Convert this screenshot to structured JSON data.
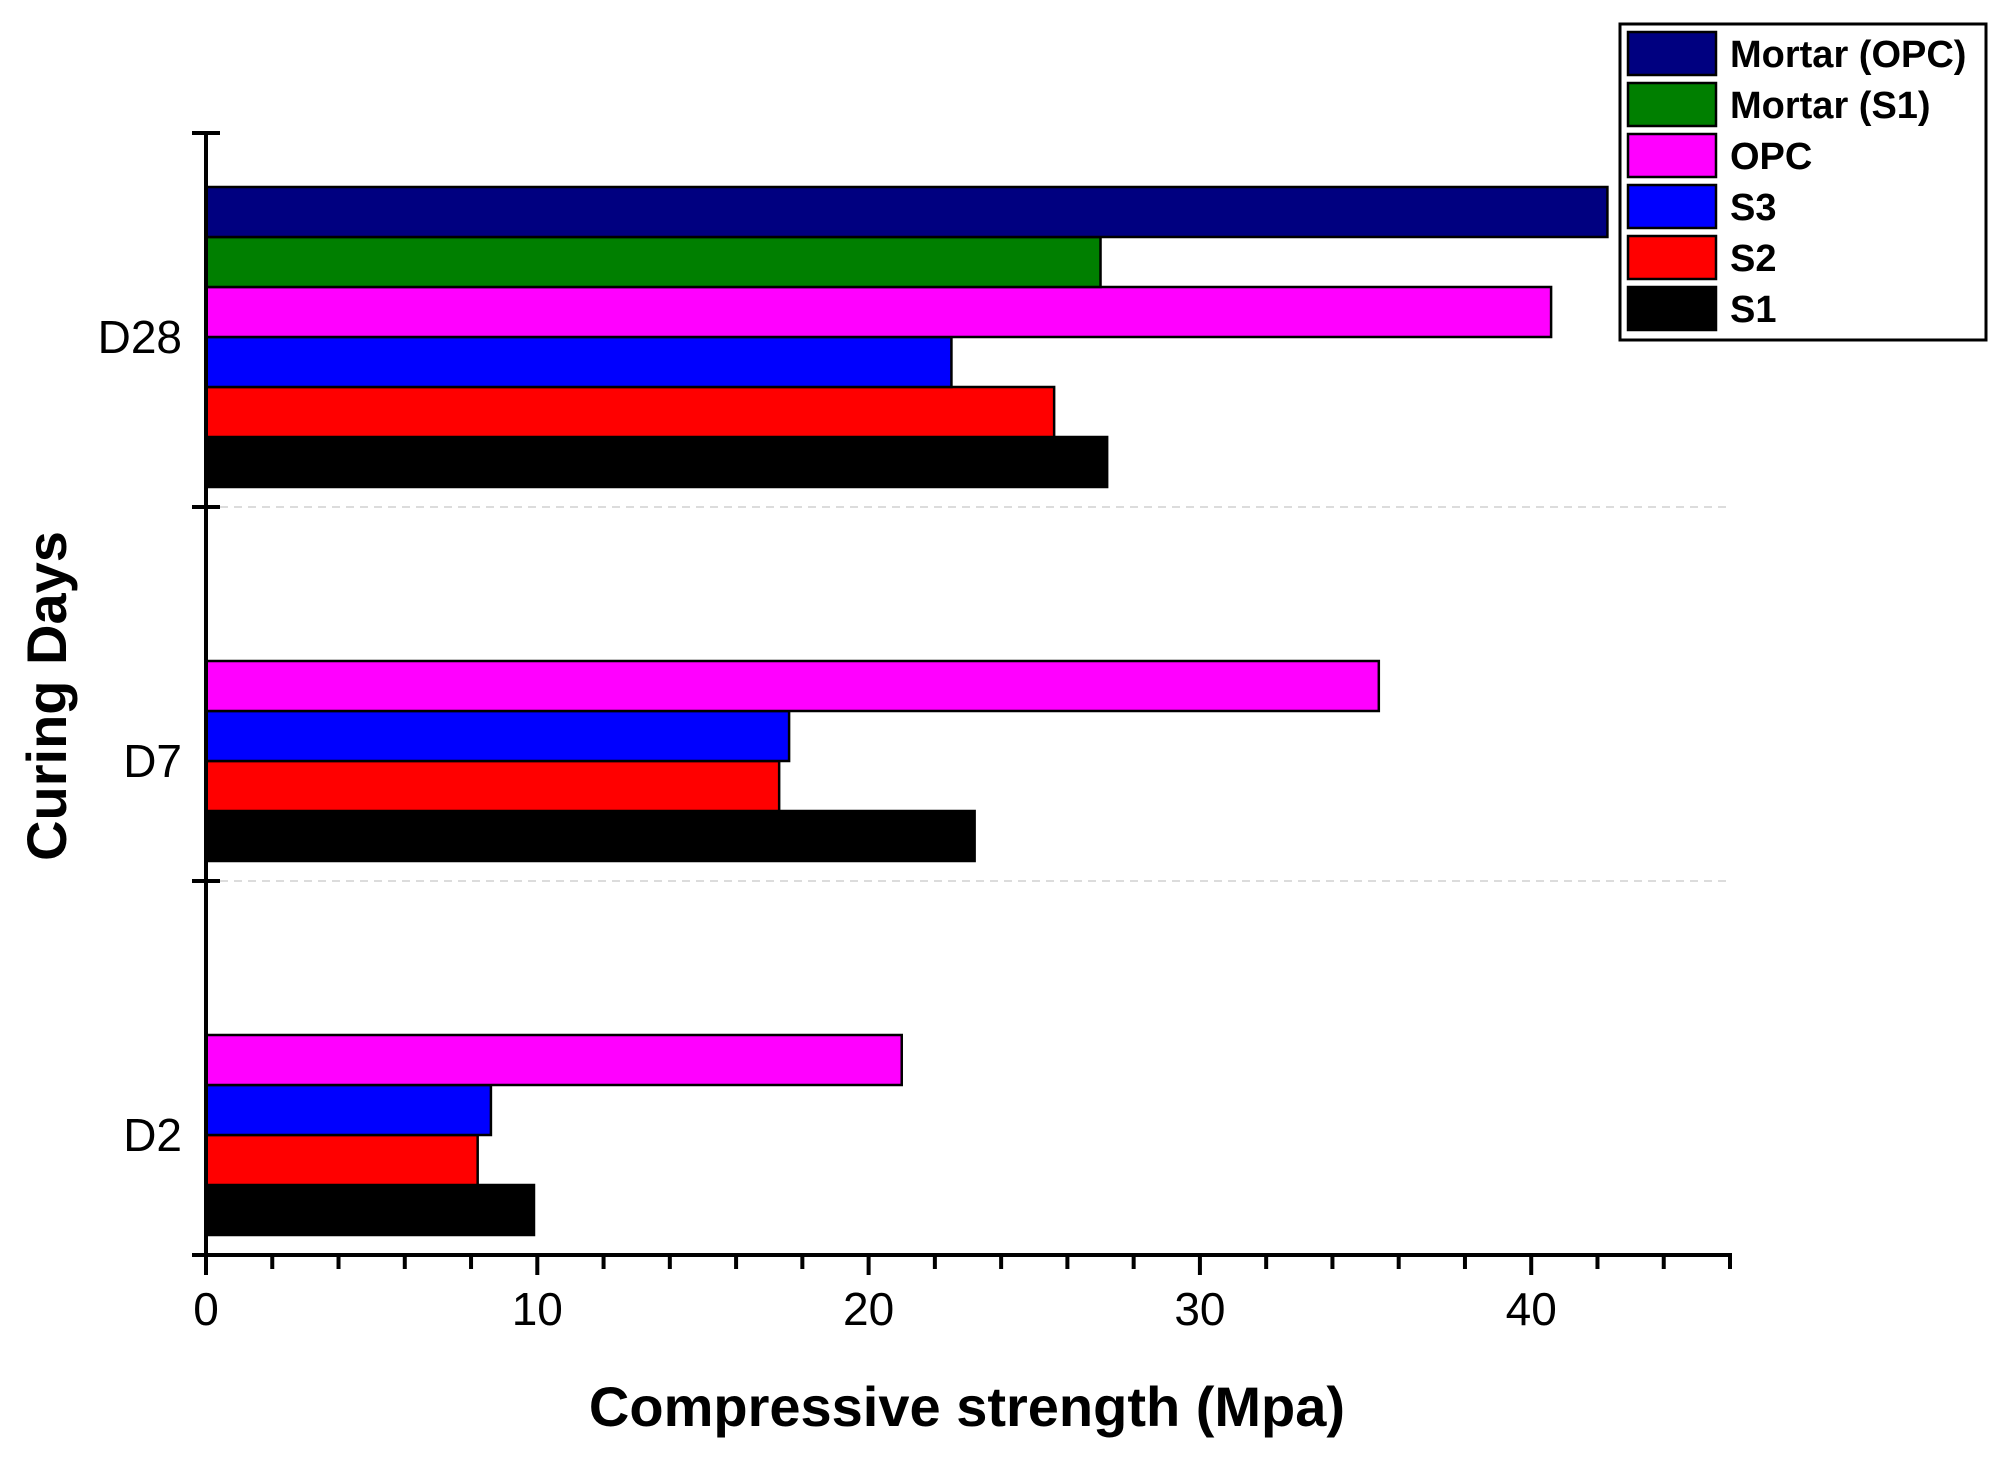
{
  "chart_data": {
    "type": "bar",
    "orientation": "horizontal",
    "xlabel": "Compressive strength (Mpa)",
    "ylabel": "Curing Days",
    "xlim": [
      0,
      46
    ],
    "xticks": [
      0,
      10,
      20,
      30,
      40
    ],
    "xtick_labels": [
      "0",
      "10",
      "20",
      "30",
      "40"
    ],
    "categories": [
      "D2",
      "D7",
      "D28"
    ],
    "legend_position": "top-right",
    "series": [
      {
        "name": "S1",
        "color": "#000000",
        "values": [
          9.9,
          23.2,
          27.2
        ]
      },
      {
        "name": "S2",
        "color": "#ff0000",
        "values": [
          8.2,
          17.3,
          25.6
        ]
      },
      {
        "name": "S3",
        "color": "#0000ff",
        "values": [
          8.6,
          17.6,
          22.5
        ]
      },
      {
        "name": "OPC",
        "color": "#ff00ff",
        "values": [
          21.0,
          35.4,
          40.6
        ]
      },
      {
        "name": "Mortar (S1)",
        "color": "#007f00",
        "values": [
          null,
          null,
          27.0
        ]
      },
      {
        "name": "Mortar (OPC)",
        "color": "#000080",
        "values": [
          null,
          null,
          42.3
        ]
      }
    ],
    "legend_order": [
      "Mortar (OPC)",
      "Mortar (S1)",
      "OPC",
      "S3",
      "S2",
      "S1"
    ]
  }
}
